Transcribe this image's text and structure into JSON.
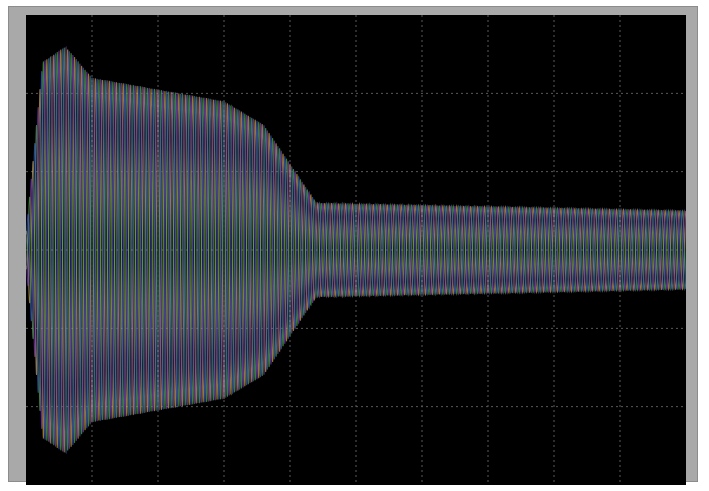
{
  "window": {
    "title": ""
  },
  "colors": {
    "bezel": "#a9a9a9",
    "screen": "#000000",
    "grid": "#5a5a5a",
    "series": [
      "#c8a046",
      "#4fa84a",
      "#7a3fb0",
      "#3a5fb8"
    ]
  },
  "chart_data": {
    "type": "line",
    "title": "",
    "xlabel": "",
    "ylabel": "",
    "x_divisions": 10,
    "y_divisions": 6,
    "xlim": [
      0,
      10
    ],
    "ylim": [
      -3,
      3
    ],
    "grid": true,
    "legend": "none",
    "oscillation_cycles": 95,
    "envelope": {
      "description_points": [
        {
          "t": 0.0,
          "amp": 0.2
        },
        {
          "t": 0.25,
          "amp": 2.4
        },
        {
          "t": 0.6,
          "amp": 2.6
        },
        {
          "t": 1.0,
          "amp": 2.2
        },
        {
          "t": 2.0,
          "amp": 2.05
        },
        {
          "t": 3.0,
          "amp": 1.9
        },
        {
          "t": 3.6,
          "amp": 1.6
        },
        {
          "t": 4.4,
          "amp": 0.6
        },
        {
          "t": 10.0,
          "amp": 0.5
        }
      ]
    },
    "series": [
      {
        "phase": 0.0
      },
      {
        "phase": 0.5
      },
      {
        "phase": 0.25
      },
      {
        "phase": 0.75
      }
    ]
  }
}
